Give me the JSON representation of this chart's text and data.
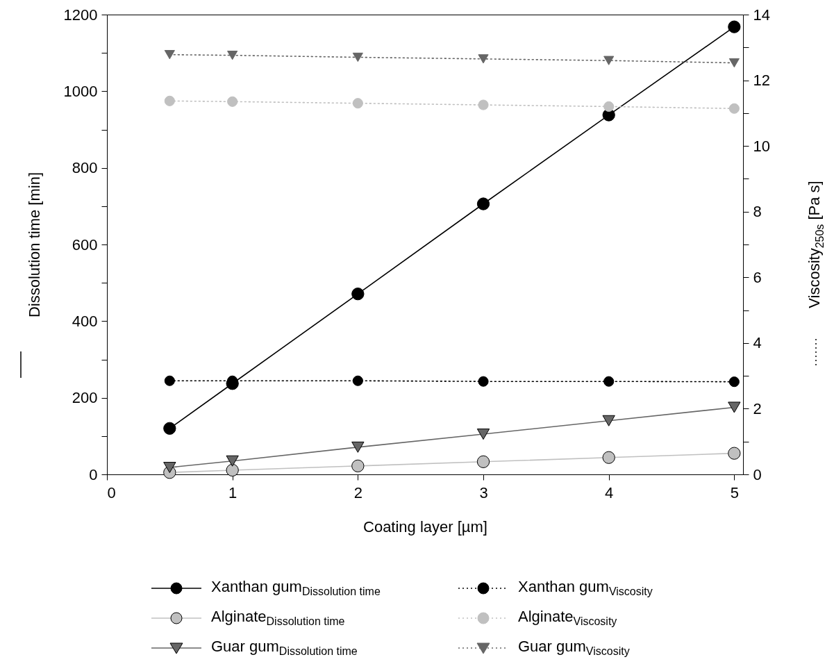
{
  "chart_data": {
    "type": "line",
    "xlabel": "Coating layer [µm]",
    "ylabel": "Dissolution time [min]",
    "y2label": "Viscosity$_{250s}$ [Pa s]",
    "x": [
      0.5,
      1,
      2,
      3,
      4,
      5
    ],
    "series": [
      {
        "name": "Xanthan gum$_{Dissolution time}$",
        "color": "#000000",
        "values": [
          120,
          237,
          471,
          706,
          938,
          1168
        ],
        "marker": "circle",
        "line_style": "solid"
      },
      {
        "name": "Alginate$_{Dissolution time}$",
        "color": "#c0c0c0",
        "values": [
          5,
          11,
          22,
          33,
          44,
          55
        ],
        "marker": "circle",
        "line_style": "solid"
      },
      {
        "name": "Guar gum$_{Dissolution time}$",
        "color": "#666666",
        "values": [
          18,
          35,
          71,
          105,
          140,
          175
        ],
        "marker": "triangle",
        "line_style": "solid"
      },
      {
        "name": "Xanthan gum$_{Viscosity}$",
        "color": "#000000",
        "values": [
          2.85,
          2.85,
          2.85,
          2.83,
          2.83,
          2.82
        ],
        "marker": "circle",
        "line_style": "dotted",
        "axis": "y2"
      },
      {
        "name": "Alginate$_{Viscosity}$",
        "color": "#c0c0c0",
        "values": [
          11.37,
          11.35,
          11.3,
          11.25,
          11.2,
          11.14
        ],
        "marker": "circle",
        "line_style": "dotted",
        "axis": "y2"
      },
      {
        "name": "Guar gum$_{Viscosity}$",
        "color": "#666666",
        "values": [
          12.78,
          12.76,
          12.7,
          12.65,
          12.6,
          12.53
        ],
        "marker": "triangle",
        "line_style": "dotted",
        "axis": "y2"
      }
    ],
    "xlim": [
      0,
      5.07
    ],
    "xticks": [
      0,
      1,
      2,
      3,
      4,
      5
    ],
    "ylim": [
      0,
      1200
    ],
    "yticks": [
      0,
      {
        "value": 100,
        "label": null
      },
      200,
      {
        "value": 300,
        "label": null
      },
      400,
      {
        "value": 500,
        "label": null
      },
      600,
      {
        "value": 700,
        "label": null
      },
      800,
      {
        "value": 900,
        "label": null
      },
      1000,
      {
        "value": 1100,
        "label": null
      },
      1200
    ],
    "y2lim": [
      0,
      14
    ],
    "y2ticks": [
      0,
      {
        "value": 1,
        "label": null
      },
      2,
      {
        "value": 3,
        "label": null
      },
      4,
      {
        "value": 5,
        "label": null
      },
      6,
      {
        "value": 7,
        "label": null
      },
      8,
      {
        "value": 9,
        "label": null
      },
      10,
      {
        "value": 11,
        "label": null
      },
      12,
      {
        "value": 13,
        "label": null
      },
      14
    ],
    "grid": false,
    "legend": "bottom"
  }
}
